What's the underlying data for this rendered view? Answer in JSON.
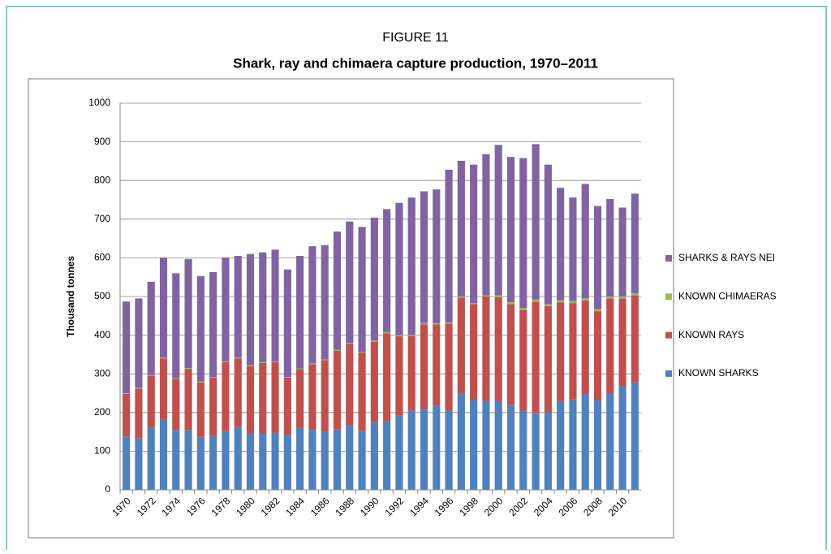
{
  "chart_data": {
    "type": "stacked_bar",
    "figure_label": "FIGURE 11",
    "title": "Shark, ray and chimaera capture production, 1970–2011",
    "y_label": "Thousand tonnes",
    "categories": [
      "1970",
      null,
      "1972",
      null,
      "1974",
      null,
      "1976",
      null,
      "1978",
      null,
      "1980",
      null,
      "1982",
      null,
      "1984",
      null,
      "1986",
      null,
      "1988",
      null,
      "1990",
      null,
      "1992",
      null,
      "1994",
      null,
      "1996",
      null,
      "1998",
      null,
      "2000",
      null,
      "2002",
      null,
      "2004",
      null,
      "2006",
      null,
      "2008",
      null,
      "2010",
      null
    ],
    "series": [
      {
        "name": "KNOWN SHARKS",
        "color": "#4f81bd",
        "values": [
          138,
          133,
          160,
          183,
          155,
          155,
          137,
          140,
          152,
          163,
          145,
          145,
          148,
          143,
          160,
          155,
          150,
          157,
          168,
          152,
          175,
          178,
          193,
          205,
          210,
          218,
          205,
          248,
          232,
          230,
          230,
          220,
          205,
          198,
          200,
          230,
          235,
          247,
          232,
          248,
          268,
          278
        ]
      },
      {
        "name": "KNOWN RAYS",
        "color": "#c0504d",
        "values": [
          110,
          129,
          135,
          157,
          132,
          158,
          141,
          150,
          178,
          177,
          175,
          183,
          182,
          147,
          152,
          170,
          185,
          203,
          210,
          203,
          208,
          227,
          204,
          193,
          218,
          210,
          225,
          249,
          248,
          270,
          268,
          260,
          260,
          289,
          275,
          255,
          248,
          243,
          230,
          247,
          227,
          225
        ]
      },
      {
        "name": "KNOWN CHIMAERAS",
        "color": "#9bbb59",
        "values": [
          2,
          2,
          2,
          2,
          2,
          2,
          2,
          2,
          2,
          2,
          2,
          2,
          2,
          2,
          2,
          2,
          2,
          2,
          2,
          2,
          3,
          3,
          3,
          3,
          3,
          3,
          3,
          3,
          3,
          3,
          5,
          5,
          5,
          5,
          5,
          5,
          5,
          5,
          5,
          5,
          5,
          5
        ]
      },
      {
        "name": "SHARKS & RAYS NEI",
        "color": "#8064a2",
        "values": [
          237,
          231,
          241,
          258,
          271,
          282,
          273,
          271,
          268,
          263,
          288,
          284,
          289,
          278,
          291,
          303,
          296,
          306,
          314,
          323,
          318,
          318,
          342,
          355,
          341,
          346,
          395,
          351,
          358,
          365,
          389,
          376,
          388,
          402,
          361,
          291,
          268,
          296,
          267,
          252,
          230,
          258
        ]
      }
    ],
    "ylim": [
      0,
      1000
    ],
    "yticks": [
      0,
      100,
      200,
      300,
      400,
      500,
      600,
      700,
      800,
      900,
      1000
    ],
    "grid": true
  }
}
